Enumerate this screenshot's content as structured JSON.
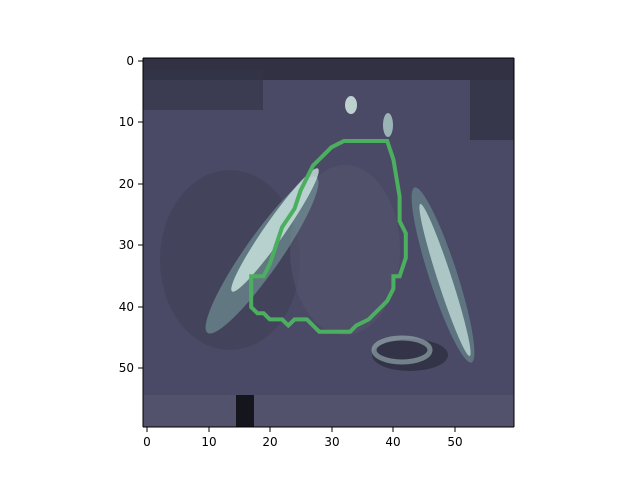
{
  "figure": {
    "x_ticks": [
      "0",
      "10",
      "20",
      "30",
      "40",
      "50"
    ],
    "y_ticks": [
      "0",
      "10",
      "20",
      "30",
      "40",
      "50"
    ],
    "x_range": [
      -0.5,
      59.5
    ],
    "y_range": [
      -0.5,
      59.5
    ],
    "contour_color": "#4caf60",
    "colormap": "bone-like (dark navy to pale mint)"
  },
  "contour_outline": [
    [
      32,
      13
    ],
    [
      39,
      13
    ],
    [
      40,
      16
    ],
    [
      41,
      22
    ],
    [
      41,
      26
    ],
    [
      42,
      28
    ],
    [
      42,
      32
    ],
    [
      41,
      35
    ],
    [
      40,
      35
    ],
    [
      40,
      37
    ],
    [
      39,
      39
    ],
    [
      38,
      40
    ],
    [
      37,
      41
    ],
    [
      36,
      42
    ],
    [
      34,
      43
    ],
    [
      33,
      44
    ],
    [
      28,
      44
    ],
    [
      27,
      43
    ],
    [
      26,
      42
    ],
    [
      24,
      42
    ],
    [
      23,
      43
    ],
    [
      22,
      42
    ],
    [
      20,
      42
    ],
    [
      19,
      41
    ],
    [
      18,
      41
    ],
    [
      17,
      40
    ],
    [
      17,
      35
    ],
    [
      19,
      35
    ],
    [
      20,
      33
    ],
    [
      21,
      30
    ],
    [
      22,
      27
    ],
    [
      24,
      24
    ],
    [
      25,
      21
    ],
    [
      26,
      19
    ],
    [
      27,
      17
    ],
    [
      28,
      16
    ],
    [
      29,
      15
    ],
    [
      30,
      14
    ]
  ]
}
